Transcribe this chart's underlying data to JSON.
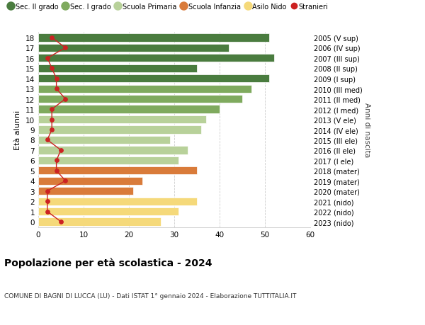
{
  "ages": [
    18,
    17,
    16,
    15,
    14,
    13,
    12,
    11,
    10,
    9,
    8,
    7,
    6,
    5,
    4,
    3,
    2,
    1,
    0
  ],
  "bar_values": [
    51,
    42,
    52,
    35,
    51,
    47,
    45,
    40,
    37,
    36,
    29,
    33,
    31,
    35,
    23,
    21,
    35,
    31,
    27
  ],
  "stranieri": [
    3,
    6,
    2,
    3,
    4,
    4,
    6,
    3,
    3,
    3,
    2,
    5,
    4,
    4,
    6,
    2,
    2,
    2,
    5
  ],
  "right_labels": [
    "2005 (V sup)",
    "2006 (IV sup)",
    "2007 (III sup)",
    "2008 (II sup)",
    "2009 (I sup)",
    "2010 (III med)",
    "2011 (II med)",
    "2012 (I med)",
    "2013 (V ele)",
    "2014 (IV ele)",
    "2015 (III ele)",
    "2016 (II ele)",
    "2017 (I ele)",
    "2018 (mater)",
    "2019 (mater)",
    "2020 (mater)",
    "2021 (nido)",
    "2022 (nido)",
    "2023 (nido)"
  ],
  "bar_colors": [
    "#4a7c3f",
    "#4a7c3f",
    "#4a7c3f",
    "#4a7c3f",
    "#4a7c3f",
    "#7faa5e",
    "#7faa5e",
    "#7faa5e",
    "#b8d19a",
    "#b8d19a",
    "#b8d19a",
    "#b8d19a",
    "#b8d19a",
    "#d97b3a",
    "#d97b3a",
    "#d97b3a",
    "#f5d97a",
    "#f5d97a",
    "#f5d97a"
  ],
  "legend_labels": [
    "Sec. II grado",
    "Sec. I grado",
    "Scuola Primaria",
    "Scuola Infanzia",
    "Asilo Nido",
    "Stranieri"
  ],
  "legend_colors": [
    "#4a7c3f",
    "#7faa5e",
    "#b8d19a",
    "#d97b3a",
    "#f5d97a",
    "#cc2222"
  ],
  "title": "Popolazione per età scolastica - 2024",
  "subtitle": "COMUNE DI BAGNI DI LUCCA (LU) - Dati ISTAT 1° gennaio 2024 - Elaborazione TUTTITALIA.IT",
  "ylabel": "Età alunni",
  "right_ylabel": "Anni di nascita",
  "xlim": [
    0,
    60
  ],
  "xticks": [
    0,
    10,
    20,
    30,
    40,
    50,
    60
  ],
  "bg_color": "#ffffff",
  "grid_color": "#cccccc",
  "stranieri_color": "#cc2222",
  "bar_height": 0.78
}
